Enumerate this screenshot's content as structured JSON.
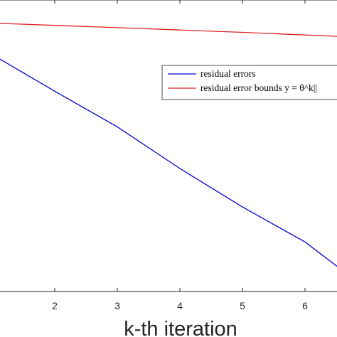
{
  "chart_data": {
    "type": "line",
    "xlabel": "k-th iteration",
    "ylabel": "",
    "title": "",
    "xlim": [
      1.1,
      6.55
    ],
    "ylim": [
      0,
      1
    ],
    "x_ticks": [
      2,
      3,
      4,
      5,
      6
    ],
    "x_tick_labels": [
      "2",
      "3",
      "4",
      "5",
      "6"
    ],
    "log_scale_y": true,
    "grid": false,
    "legend_position": "upper-right",
    "series": [
      {
        "name": "residual errors",
        "color": "#0000cc",
        "x": [
          1.1,
          2,
          3,
          4,
          5,
          6,
          6.55
        ],
        "y": [
          0.8,
          0.687,
          0.565,
          0.422,
          0.29,
          0.17,
          0.08
        ]
      },
      {
        "name": "residual error bounds y = θ^k||",
        "color": "#dd2222",
        "x": [
          1.1,
          2,
          3,
          4,
          5,
          6,
          6.55
        ],
        "y": [
          0.92,
          0.913,
          0.905,
          0.897,
          0.889,
          0.88,
          0.875
        ]
      }
    ]
  }
}
